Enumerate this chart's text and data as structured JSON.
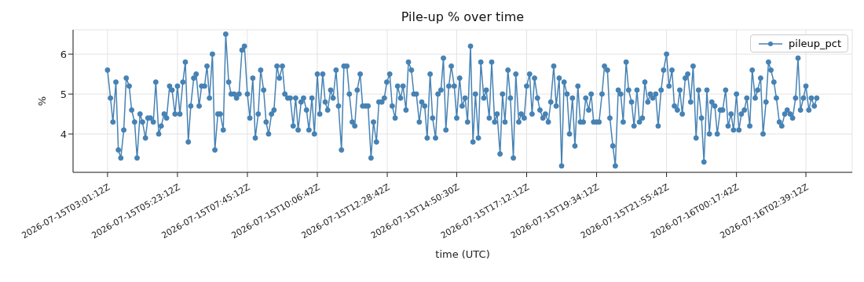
{
  "chart_data": {
    "type": "line",
    "title": "Pile-up % over time",
    "xlabel": "time (UTC)",
    "ylabel": "%",
    "x": [
      "2026-07-15T03:01",
      "2026-07-15T03:07",
      "2026-07-15T03:12",
      "2026-07-15T03:18",
      "2026-07-15T03:23",
      "2026-07-15T03:28",
      "2026-07-15T03:34",
      "2026-07-15T03:39",
      "2026-07-15T03:45",
      "2026-07-15T03:50",
      "2026-07-15T03:56",
      "2026-07-15T04:01",
      "2026-07-15T04:07",
      "2026-07-15T04:12",
      "2026-07-15T04:18",
      "2026-07-15T04:23",
      "2026-07-15T04:28",
      "2026-07-15T04:34",
      "2026-07-15T04:39",
      "2026-07-15T04:45",
      "2026-07-15T04:50",
      "2026-07-15T04:56",
      "2026-07-15T05:01",
      "2026-07-15T05:07",
      "2026-07-15T05:12",
      "2026-07-15T05:18",
      "2026-07-15T05:23",
      "2026-07-15T05:28",
      "2026-07-15T05:34",
      "2026-07-15T05:39",
      "2026-07-15T05:45",
      "2026-07-15T05:50",
      "2026-07-15T05:56",
      "2026-07-15T06:01",
      "2026-07-15T06:07",
      "2026-07-15T06:12",
      "2026-07-15T06:18",
      "2026-07-15T06:23",
      "2026-07-15T06:28",
      "2026-07-15T06:34",
      "2026-07-15T06:39",
      "2026-07-15T06:45",
      "2026-07-15T06:50",
      "2026-07-15T06:56",
      "2026-07-15T07:01",
      "2026-07-15T07:07",
      "2026-07-15T07:12",
      "2026-07-15T07:18",
      "2026-07-15T07:23",
      "2026-07-15T07:28",
      "2026-07-15T07:34",
      "2026-07-15T07:39",
      "2026-07-15T07:45",
      "2026-07-15T07:50",
      "2026-07-15T07:56",
      "2026-07-15T08:01",
      "2026-07-15T08:07",
      "2026-07-15T08:12",
      "2026-07-15T08:18",
      "2026-07-15T08:23",
      "2026-07-15T08:28",
      "2026-07-15T08:34",
      "2026-07-15T08:39",
      "2026-07-15T08:45",
      "2026-07-15T08:50",
      "2026-07-15T08:56",
      "2026-07-15T09:01",
      "2026-07-15T09:07",
      "2026-07-15T09:12",
      "2026-07-15T09:18",
      "2026-07-15T09:23",
      "2026-07-15T09:28",
      "2026-07-15T09:34",
      "2026-07-15T09:39",
      "2026-07-15T09:45",
      "2026-07-15T09:50",
      "2026-07-15T09:56",
      "2026-07-15T10:01",
      "2026-07-15T10:07",
      "2026-07-15T10:12",
      "2026-07-15T10:18",
      "2026-07-15T10:23",
      "2026-07-15T10:28",
      "2026-07-15T10:34",
      "2026-07-15T10:39",
      "2026-07-15T10:45",
      "2026-07-15T10:50",
      "2026-07-15T10:56",
      "2026-07-15T11:01",
      "2026-07-15T11:07",
      "2026-07-15T11:12",
      "2026-07-15T11:18",
      "2026-07-15T11:23",
      "2026-07-15T11:28",
      "2026-07-15T11:34",
      "2026-07-15T11:39",
      "2026-07-15T11:45",
      "2026-07-15T11:50",
      "2026-07-15T11:56",
      "2026-07-15T12:01",
      "2026-07-15T12:07",
      "2026-07-15T12:12",
      "2026-07-15T12:18",
      "2026-07-15T12:23",
      "2026-07-15T12:28",
      "2026-07-15T12:34",
      "2026-07-15T12:39",
      "2026-07-15T12:45",
      "2026-07-15T12:50",
      "2026-07-15T12:56",
      "2026-07-15T13:01",
      "2026-07-15T13:07",
      "2026-07-15T13:12",
      "2026-07-15T13:18",
      "2026-07-15T13:23",
      "2026-07-15T13:28",
      "2026-07-15T13:34",
      "2026-07-15T13:39",
      "2026-07-15T13:45",
      "2026-07-15T13:50",
      "2026-07-15T13:56",
      "2026-07-15T14:01",
      "2026-07-15T14:07",
      "2026-07-15T14:12",
      "2026-07-15T14:18",
      "2026-07-15T14:23",
      "2026-07-15T14:28",
      "2026-07-15T14:34",
      "2026-07-15T14:39",
      "2026-07-15T14:45",
      "2026-07-15T14:50",
      "2026-07-15T14:56",
      "2026-07-15T15:01",
      "2026-07-15T15:07",
      "2026-07-15T15:12",
      "2026-07-15T15:18",
      "2026-07-15T15:23",
      "2026-07-15T15:28",
      "2026-07-15T15:34",
      "2026-07-15T15:39",
      "2026-07-15T15:45",
      "2026-07-15T15:50",
      "2026-07-15T15:56",
      "2026-07-15T16:01",
      "2026-07-15T16:07",
      "2026-07-15T16:12",
      "2026-07-15T16:18",
      "2026-07-15T16:23",
      "2026-07-15T16:28",
      "2026-07-15T16:34",
      "2026-07-15T16:39",
      "2026-07-15T16:45",
      "2026-07-15T16:50",
      "2026-07-15T16:56",
      "2026-07-15T17:01",
      "2026-07-15T17:07",
      "2026-07-15T17:12",
      "2026-07-15T17:18",
      "2026-07-15T17:23",
      "2026-07-15T17:28",
      "2026-07-15T17:34",
      "2026-07-15T17:39",
      "2026-07-15T17:45",
      "2026-07-15T17:50",
      "2026-07-15T17:56",
      "2026-07-15T18:01",
      "2026-07-15T18:07",
      "2026-07-15T18:12",
      "2026-07-15T18:18",
      "2026-07-15T18:23",
      "2026-07-15T18:28",
      "2026-07-15T18:34",
      "2026-07-15T18:39",
      "2026-07-15T18:45",
      "2026-07-15T18:50",
      "2026-07-15T18:56",
      "2026-07-15T19:01",
      "2026-07-15T19:07",
      "2026-07-15T19:12",
      "2026-07-15T19:18",
      "2026-07-15T19:23",
      "2026-07-15T19:28",
      "2026-07-15T19:34",
      "2026-07-15T19:39",
      "2026-07-15T19:45",
      "2026-07-15T19:50",
      "2026-07-15T19:56",
      "2026-07-15T20:01",
      "2026-07-15T20:07",
      "2026-07-15T20:12",
      "2026-07-15T20:18",
      "2026-07-15T20:23",
      "2026-07-15T20:28",
      "2026-07-15T20:34",
      "2026-07-15T20:39",
      "2026-07-15T20:45",
      "2026-07-15T20:50",
      "2026-07-15T20:56",
      "2026-07-15T21:01",
      "2026-07-15T21:07",
      "2026-07-15T21:12",
      "2026-07-15T21:18",
      "2026-07-15T21:23",
      "2026-07-15T21:28",
      "2026-07-15T21:34",
      "2026-07-15T21:39",
      "2026-07-15T21:45",
      "2026-07-15T21:50",
      "2026-07-15T21:56",
      "2026-07-15T22:01",
      "2026-07-15T22:07",
      "2026-07-15T22:12",
      "2026-07-15T22:18",
      "2026-07-15T22:23",
      "2026-07-15T22:28",
      "2026-07-15T22:34",
      "2026-07-15T22:39",
      "2026-07-15T22:45",
      "2026-07-15T22:50",
      "2026-07-15T22:56",
      "2026-07-15T23:01",
      "2026-07-15T23:07",
      "2026-07-15T23:12",
      "2026-07-15T23:18",
      "2026-07-15T23:23",
      "2026-07-15T23:28",
      "2026-07-15T23:34",
      "2026-07-15T23:39",
      "2026-07-15T23:45",
      "2026-07-15T23:50",
      "2026-07-15T23:56",
      "2026-07-16T00:01",
      "2026-07-16T00:07",
      "2026-07-16T00:12",
      "2026-07-16T00:18",
      "2026-07-16T00:23",
      "2026-07-16T00:28",
      "2026-07-16T00:34",
      "2026-07-16T00:39",
      "2026-07-16T00:45",
      "2026-07-16T00:50",
      "2026-07-16T00:56",
      "2026-07-16T01:01",
      "2026-07-16T01:07",
      "2026-07-16T01:12",
      "2026-07-16T01:18",
      "2026-07-16T01:23",
      "2026-07-16T01:28",
      "2026-07-16T01:34",
      "2026-07-16T01:39",
      "2026-07-16T01:45",
      "2026-07-16T01:50",
      "2026-07-16T01:56",
      "2026-07-16T02:01",
      "2026-07-16T02:07",
      "2026-07-16T02:12",
      "2026-07-16T02:18",
      "2026-07-16T02:23",
      "2026-07-16T02:28",
      "2026-07-16T02:34",
      "2026-07-16T02:39",
      "2026-07-16T02:45",
      "2026-07-16T02:50",
      "2026-07-16T02:56",
      "2026-07-16T03:01"
    ],
    "series": [
      {
        "name": "pileup_pct",
        "color": "#4682b4",
        "values": [
          5.6,
          4.9,
          4.3,
          5.3,
          3.6,
          3.4,
          4.1,
          5.4,
          5.2,
          4.6,
          4.3,
          3.4,
          4.5,
          4.3,
          3.9,
          4.4,
          4.4,
          4.3,
          5.3,
          4.0,
          4.2,
          4.5,
          4.4,
          5.2,
          5.1,
          4.5,
          5.2,
          4.5,
          5.3,
          5.8,
          3.8,
          4.7,
          5.4,
          5.5,
          4.7,
          5.2,
          5.2,
          5.7,
          4.9,
          6.0,
          3.6,
          4.5,
          4.5,
          4.1,
          6.5,
          5.3,
          5.0,
          5.0,
          4.9,
          5.0,
          6.1,
          6.2,
          5.0,
          4.4,
          5.4,
          3.9,
          4.5,
          5.6,
          5.1,
          4.3,
          4.0,
          4.5,
          4.6,
          5.7,
          5.4,
          5.7,
          5.0,
          4.9,
          4.9,
          4.2,
          4.9,
          4.1,
          4.8,
          4.9,
          4.6,
          4.1,
          4.9,
          4.0,
          5.5,
          4.5,
          5.5,
          4.8,
          4.6,
          5.1,
          4.9,
          5.6,
          4.7,
          3.6,
          5.7,
          5.7,
          5.0,
          4.3,
          4.2,
          5.1,
          5.5,
          4.7,
          4.7,
          4.7,
          3.4,
          4.3,
          3.8,
          4.8,
          4.8,
          4.9,
          5.3,
          5.5,
          4.7,
          4.4,
          5.2,
          4.9,
          5.2,
          4.6,
          5.8,
          5.6,
          5.0,
          5.0,
          4.3,
          4.8,
          4.7,
          3.9,
          5.5,
          4.4,
          3.9,
          5.0,
          5.1,
          5.9,
          4.1,
          5.2,
          5.7,
          5.2,
          4.4,
          5.4,
          4.7,
          4.9,
          4.3,
          6.2,
          3.8,
          5.0,
          3.9,
          5.8,
          4.9,
          5.1,
          4.4,
          5.8,
          4.3,
          4.5,
          3.5,
          5.0,
          4.3,
          5.6,
          4.9,
          3.4,
          5.5,
          4.3,
          4.5,
          4.4,
          5.2,
          5.5,
          4.5,
          5.4,
          4.9,
          4.6,
          4.4,
          4.5,
          4.3,
          4.8,
          5.7,
          4.7,
          5.4,
          3.2,
          5.3,
          5.0,
          4.0,
          4.9,
          3.7,
          5.2,
          4.3,
          4.3,
          4.9,
          4.6,
          5.0,
          4.3,
          4.3,
          4.3,
          5.0,
          5.7,
          5.6,
          4.4,
          3.7,
          3.2,
          5.1,
          5.0,
          4.3,
          5.8,
          5.1,
          4.8,
          4.2,
          5.1,
          4.3,
          4.4,
          5.3,
          4.8,
          5.0,
          4.9,
          5.0,
          4.2,
          5.1,
          5.6,
          6.0,
          5.2,
          5.6,
          4.7,
          4.6,
          5.1,
          4.5,
          5.4,
          5.5,
          4.8,
          5.7,
          3.9,
          5.1,
          4.4,
          3.3,
          5.1,
          4.0,
          4.8,
          4.7,
          4.0,
          4.6,
          4.6,
          5.1,
          4.2,
          4.5,
          4.1,
          5.0,
          4.1,
          4.5,
          4.6,
          4.9,
          4.2,
          5.6,
          4.9,
          5.1,
          5.4,
          4.0,
          4.8,
          5.8,
          5.6,
          5.3,
          4.9,
          4.3,
          4.2,
          4.5,
          4.6,
          4.5,
          4.4,
          4.9,
          5.9,
          4.6,
          4.9,
          5.2,
          4.6,
          4.9,
          4.7,
          4.9
        ]
      }
    ],
    "xlim": [
      "2026-07-15T01:51",
      "2026-07-16T04:13"
    ],
    "xticks": [
      {
        "value": "2026-07-15T03:01",
        "label": "2026-07-15T03:01:12Z"
      },
      {
        "value": "2026-07-15T05:23",
        "label": "2026-07-15T05:23:12Z"
      },
      {
        "value": "2026-07-15T07:45",
        "label": "2026-07-15T07:45:12Z"
      },
      {
        "value": "2026-07-15T10:07",
        "label": "2026-07-15T10:06:42Z"
      },
      {
        "value": "2026-07-15T12:29",
        "label": "2026-07-15T12:28:42Z"
      },
      {
        "value": "2026-07-15T14:50",
        "label": "2026-07-15T14:50:30Z"
      },
      {
        "value": "2026-07-15T17:12",
        "label": "2026-07-15T17:12:12Z"
      },
      {
        "value": "2026-07-15T19:34",
        "label": "2026-07-15T19:34:12Z"
      },
      {
        "value": "2026-07-15T21:56",
        "label": "2026-07-15T21:55:42Z"
      },
      {
        "value": "2026-07-16T00:18",
        "label": "2026-07-16T00:17:42Z"
      },
      {
        "value": "2026-07-16T02:39",
        "label": "2026-07-16T02:39:12Z"
      }
    ],
    "ylim": [
      3.04,
      6.61
    ],
    "yticks": [
      4,
      5,
      6
    ],
    "grid": true,
    "legend": "top right",
    "marker": "circle",
    "line_style": "solid"
  }
}
